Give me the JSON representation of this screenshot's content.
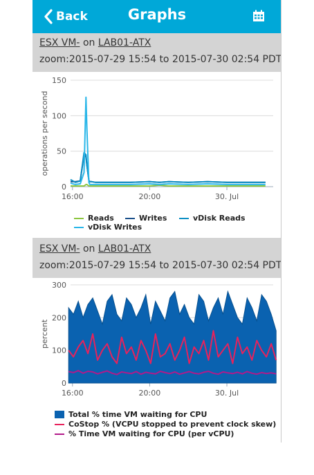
{
  "header": {
    "back_label": "Back",
    "title": "Graphs",
    "back_icon": "chevron-left-icon",
    "calendar_icon": "calendar-icon",
    "color": "#00a8d8"
  },
  "panels": [
    {
      "vm_name": "ESX VM-",
      "on_text": "on",
      "host_name": "LAB01-ATX",
      "zoom_text": "zoom:2015-07-29 15:54 to 2015-07-30 02:54 PDT"
    },
    {
      "vm_name": "ESX VM-",
      "on_text": "on",
      "host_name": "LAB01-ATX",
      "zoom_text": "zoom:2015-07-29 15:54 to 2015-07-30 02:54 PDT"
    }
  ],
  "chart_data": [
    {
      "type": "line",
      "ylabel": "operations per second",
      "ylim": [
        0,
        150
      ],
      "yticks": [
        "0",
        "50",
        "100",
        "150"
      ],
      "xlim": [
        15.9,
        26.4
      ],
      "xticks": [
        {
          "value": 16,
          "label": "16:00"
        },
        {
          "value": 20,
          "label": "20:00"
        },
        {
          "value": 24,
          "label": "30. Jul"
        }
      ],
      "x": [
        15.9,
        16.15,
        16.4,
        16.6,
        16.7,
        16.75,
        16.85,
        16.9,
        17.0,
        17.2,
        18.0,
        19.0,
        20.0,
        20.5,
        21.0,
        22.0,
        23.0,
        24.0,
        25.0,
        26.0
      ],
      "series": [
        {
          "name": "Reads",
          "color": "#8cc63f",
          "values": [
            1,
            1,
            1,
            1,
            3,
            3,
            1,
            1,
            1,
            1,
            1,
            1,
            1,
            2,
            1,
            1,
            1,
            1,
            1,
            1
          ]
        },
        {
          "name": "Writes",
          "color": "#1a4f8a",
          "values": [
            7,
            7,
            8,
            45,
            42,
            30,
            9,
            7,
            7,
            6,
            6,
            6,
            7,
            6,
            7,
            6,
            7,
            6,
            6,
            6
          ]
        },
        {
          "name": "vDisk Reads",
          "color": "#0d8fc4",
          "values": [
            10,
            6,
            8,
            48,
            45,
            30,
            9,
            7,
            7,
            6,
            6,
            6,
            7,
            6,
            7,
            6,
            7,
            6,
            6,
            6
          ]
        },
        {
          "name": "vDisk Writes",
          "color": "#29b6e8",
          "values": [
            5,
            3,
            4,
            20,
            126,
            80,
            6,
            3,
            3,
            3,
            3,
            3,
            4,
            3,
            4,
            3,
            4,
            3,
            3,
            3
          ]
        }
      ],
      "legend": "bottom"
    },
    {
      "type": "area",
      "ylabel": "percent",
      "ylim": [
        0,
        300
      ],
      "yticks": [
        "0",
        "100",
        "200",
        "300"
      ],
      "xlim": [
        15.9,
        26.4
      ],
      "xticks": [
        {
          "value": 16,
          "label": "16:00"
        },
        {
          "value": 20,
          "label": "20:00"
        },
        {
          "value": 24,
          "label": "30. Jul"
        }
      ],
      "x_start": 15.8,
      "x_step": 0.25,
      "series": [
        {
          "name": "Total % time VM waiting for CPU",
          "color": "#0a62b0",
          "values": [
            230,
            210,
            250,
            200,
            240,
            260,
            220,
            180,
            250,
            270,
            210,
            190,
            260,
            240,
            200,
            230,
            270,
            180,
            250,
            220,
            190,
            260,
            280,
            210,
            240,
            200,
            180,
            270,
            250,
            190,
            230,
            260,
            210,
            280,
            240,
            200,
            180,
            260,
            230,
            190,
            270,
            250,
            210,
            160
          ]
        },
        {
          "name": "CoStop % (VCPU stopped to prevent clock skew)",
          "color": "#e8225c",
          "values": [
            100,
            80,
            110,
            130,
            90,
            150,
            70,
            100,
            120,
            80,
            60,
            140,
            90,
            110,
            70,
            130,
            100,
            60,
            150,
            80,
            90,
            120,
            70,
            100,
            140,
            60,
            110,
            90,
            130,
            70,
            160,
            80,
            100,
            120,
            60,
            140,
            90,
            110,
            70,
            130,
            100,
            80,
            120,
            70
          ]
        },
        {
          "name": "% Time VM waiting for CPU (per vCPU)",
          "color": "#b3198a",
          "values": [
            35,
            32,
            38,
            30,
            36,
            34,
            28,
            33,
            37,
            30,
            26,
            34,
            31,
            29,
            35,
            27,
            33,
            30,
            28,
            36,
            32,
            29,
            34,
            27,
            31,
            35,
            30,
            28,
            33,
            36,
            30,
            27,
            34,
            31,
            29,
            33,
            28,
            35,
            30,
            27,
            32,
            29,
            31,
            28
          ]
        }
      ],
      "legend": "bottom"
    }
  ]
}
